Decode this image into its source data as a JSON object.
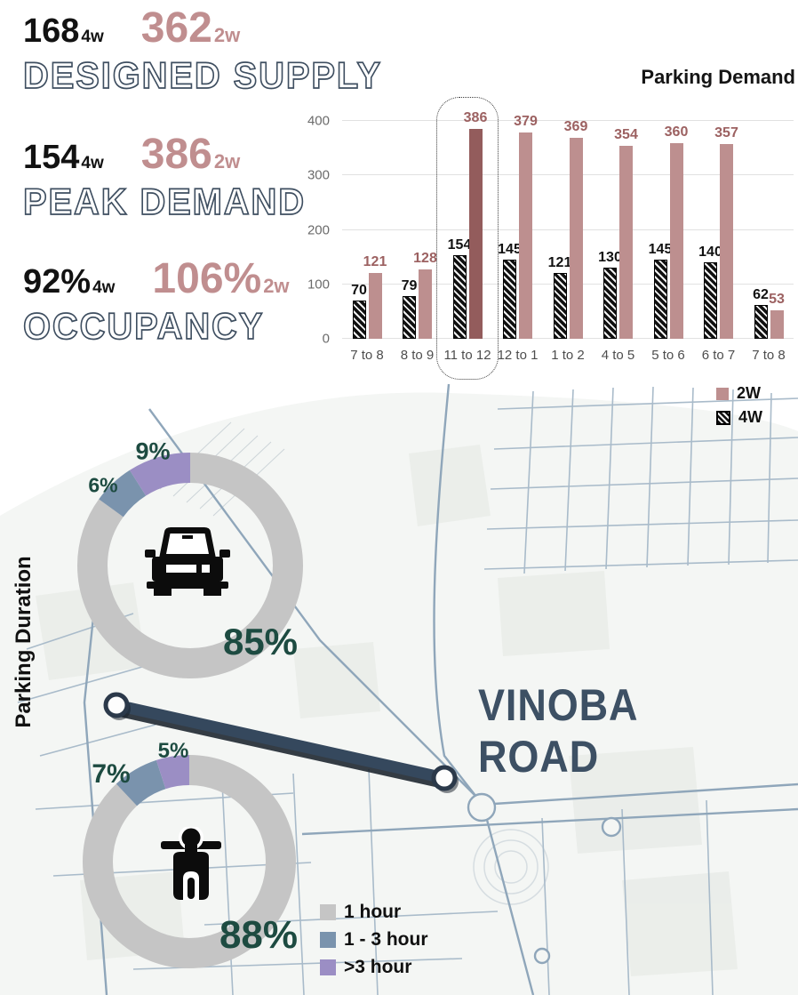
{
  "stats": [
    {
      "fourw_value": "168",
      "fourw_unit": "4w",
      "twow_value": "362",
      "twow_unit": "2w",
      "label": "DESIGNED SUPPLY"
    },
    {
      "fourw_value": "154",
      "fourw_unit": "4w",
      "twow_value": "386",
      "twow_unit": "2w",
      "label": "PEAK DEMAND"
    },
    {
      "fourw_value": "92%",
      "fourw_unit": "4w",
      "twow_value": "106%",
      "twow_unit": "2w",
      "label": "OCCUPANCY"
    }
  ],
  "chart_data": {
    "type": "bar",
    "title": "Parking Demand",
    "categories": [
      "7 to 8",
      "8 to 9",
      "11 to 12",
      "12 to 1",
      "1 to 2",
      "4 to 5",
      "5 to 6",
      "6 to 7",
      "7 to 8"
    ],
    "series": [
      {
        "name": "4W",
        "values": [
          70,
          79,
          154,
          145,
          121,
          130,
          145,
          140,
          62
        ]
      },
      {
        "name": "2W",
        "values": [
          121,
          128,
          386,
          379,
          369,
          354,
          360,
          357,
          53
        ]
      }
    ],
    "highlight_index": 2,
    "highlight_category": "11 to 12",
    "ylim": [
      0,
      400
    ],
    "yticks": [
      0,
      100,
      200,
      300,
      400
    ],
    "legend_position": "bottom-right",
    "legend": [
      {
        "label": "2W",
        "swatch": "solid",
        "color": "#bd8f8f"
      },
      {
        "label": "4W",
        "swatch": "hatch",
        "color": "#111111"
      }
    ],
    "colors": {
      "bar_2w": "#bd8f8f",
      "bar_2w_highlight": "#935c5c",
      "label_2w": "#9c6161",
      "label_4w": "#111111"
    }
  },
  "section_labels": {
    "parking_duration": "Parking Duration"
  },
  "map": {
    "road_line1": "VINOBA",
    "road_line2": "ROAD"
  },
  "duration_legend": {
    "items": [
      {
        "label": "1 hour",
        "color": "#c5c5c5"
      },
      {
        "label": "1 - 3 hour",
        "color": "#7a93ad"
      },
      {
        "label": ">3 hour",
        "color": "#9b8ec4"
      }
    ]
  },
  "donuts": [
    {
      "vehicle": "car",
      "slices": [
        {
          "duration": "1 hour",
          "pct": 85,
          "pct_label": "85%"
        },
        {
          "duration": "1 - 3 hour",
          "pct": 6,
          "pct_label": "6%"
        },
        {
          "duration": ">3 hour",
          "pct": 9,
          "pct_label": "9%"
        }
      ]
    },
    {
      "vehicle": "scooter",
      "slices": [
        {
          "duration": "1 hour",
          "pct": 88,
          "pct_label": "88%"
        },
        {
          "duration": "1 - 3 hour",
          "pct": 7,
          "pct_label": "7%"
        },
        {
          "duration": ">3 hour",
          "pct": 5,
          "pct_label": "5%"
        }
      ]
    }
  ],
  "colors": {
    "accent_pink": "#c08e8f",
    "slate_title": "#3e4e60",
    "road_name": "#3d5064",
    "pct_label": "#1d4b41"
  }
}
